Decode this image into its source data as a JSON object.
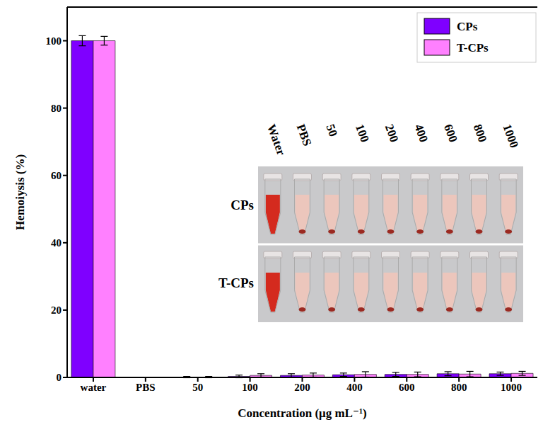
{
  "chart_data": {
    "type": "bar",
    "categories": [
      "water",
      "PBS",
      "50",
      "100",
      "200",
      "400",
      "600",
      "800",
      "1000"
    ],
    "series": [
      {
        "name": "CPs",
        "color": "#7f00ff",
        "values": [
          100,
          0,
          0.1,
          0.3,
          0.6,
          0.8,
          0.9,
          1.1,
          1.1
        ],
        "errors": [
          1.5,
          0.2,
          0.2,
          0.4,
          0.5,
          0.5,
          0.6,
          0.6,
          0.5
        ]
      },
      {
        "name": "T-CPs",
        "color": "#ff80ff",
        "values": [
          100,
          0,
          0.1,
          0.6,
          0.7,
          0.9,
          0.9,
          1.0,
          1.2
        ],
        "errors": [
          1.3,
          0.2,
          0.2,
          0.5,
          0.6,
          0.8,
          0.7,
          0.8,
          0.6
        ]
      }
    ],
    "y_label": "Hemoiysis (%)",
    "x_label": "Concentration (μg mL⁻¹)",
    "ylim": [
      0,
      110
    ],
    "yticks": [
      0,
      20,
      40,
      60,
      80,
      100
    ],
    "legend": "upper right",
    "inset": {
      "column_labels": [
        "Water",
        "PBS",
        "50",
        "100",
        "200",
        "400",
        "600",
        "800",
        "1000"
      ],
      "row_labels": [
        "CPs",
        "T-CPs"
      ]
    }
  }
}
